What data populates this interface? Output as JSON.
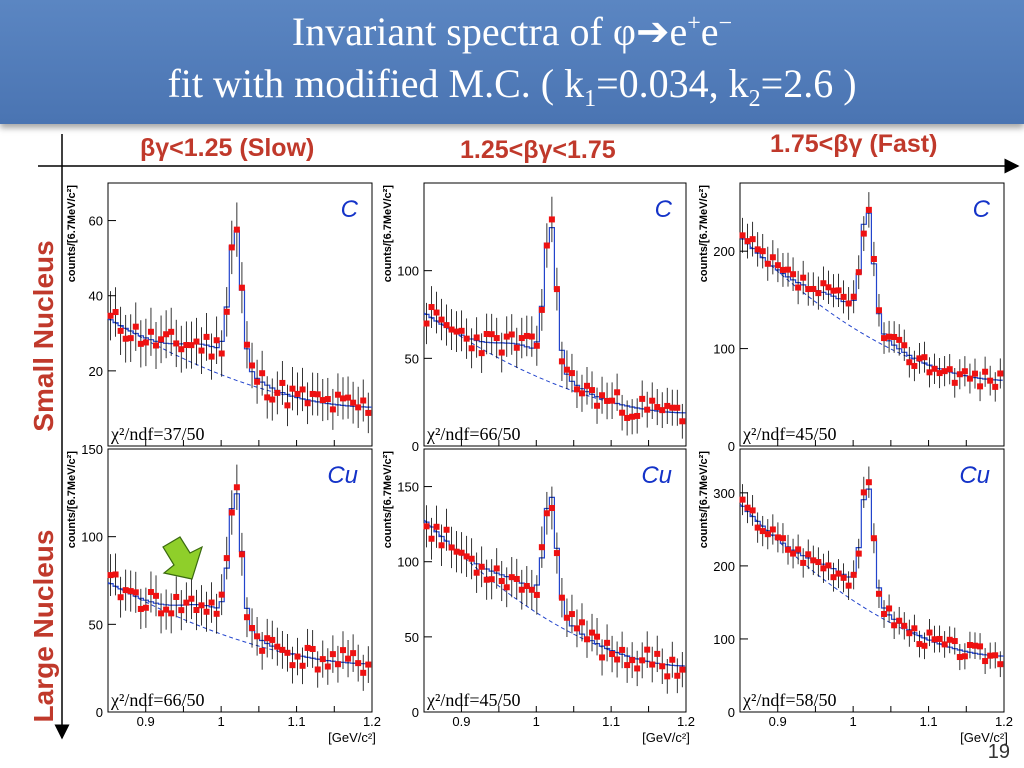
{
  "title": {
    "line1_text": "Invariant spectra of φ",
    "line1_arrow": "➔",
    "line1_e1": "e",
    "line1_sup1": "+",
    "line1_e2": "e",
    "line1_sup2": "−",
    "line2_a": "fit with modified M.C. ( k",
    "line2_sub1": "1",
    "line2_b": "=0.034, k",
    "line2_sub2": "2",
    "line2_c": "=2.6 )"
  },
  "columns": [
    "βγ<1.25 (Slow)",
    "1.25<βγ<1.75",
    "1.75<βγ (Fast)"
  ],
  "rows": [
    "Small Nucleus",
    "Large Nucleus"
  ],
  "page_number": "19",
  "colors": {
    "data": "#ee1111",
    "fit": "#2244cc",
    "label_red": "#c0392b",
    "title_bar": "#4f7bb8"
  },
  "chart_data": [
    {
      "type": "line",
      "nucleus": "C",
      "chi2": "χ²/ndf=37/50",
      "ylabel": "counts/[6.7MeV/c²]",
      "xlabel": "",
      "xlim": [
        0.85,
        1.2
      ],
      "ylim": [
        0,
        70
      ],
      "yticks": [
        20,
        40,
        60
      ],
      "bg": [
        34,
        23
      ],
      "peak": {
        "height": 36,
        "width": 0.008
      },
      "noise": 3.5,
      "seed": 11
    },
    {
      "type": "line",
      "nucleus": "C",
      "chi2": "χ²/ndf=66/50",
      "ylabel": "counts/[6.7MeV/c²]",
      "xlabel": "",
      "xlim": [
        0.85,
        1.2
      ],
      "ylim": [
        0,
        150
      ],
      "yticks": [
        0,
        50,
        100
      ],
      "bg": [
        76,
        42
      ],
      "peak": {
        "height": 80,
        "width": 0.008
      },
      "noise": 7,
      "seed": 23
    },
    {
      "type": "line",
      "nucleus": "C",
      "chi2": "χ²/ndf=45/50",
      "ylabel": "counts/[6.7MeV/c²]",
      "xlabel": "",
      "xlim": [
        0.85,
        1.2
      ],
      "ylim": [
        0,
        270
      ],
      "yticks": [
        0,
        100,
        200
      ],
      "bg": [
        215,
        150
      ],
      "peak": {
        "height": 115,
        "width": 0.008
      },
      "noise": 10,
      "seed": 37
    },
    {
      "type": "line",
      "nucleus": "Cu",
      "chi2": "χ²/ndf=66/50",
      "ylabel": "counts/[6.7MeV/c²]",
      "xlabel": "[GeV/c²]",
      "xlim": [
        0.85,
        1.2
      ],
      "ylim": [
        0,
        150
      ],
      "yticks": [
        0,
        50,
        100,
        150
      ],
      "xticks": [
        0.9,
        1,
        1.1,
        1.2
      ],
      "bg": [
        74,
        61
      ],
      "peak": {
        "height": 75,
        "width": 0.008
      },
      "noise": 7,
      "seed": 41,
      "arrow": true
    },
    {
      "type": "line",
      "nucleus": "Cu",
      "chi2": "χ²/ndf=45/50",
      "ylabel": "counts/[6.7MeV/c²]",
      "xlabel": "[GeV/c²]",
      "xlim": [
        0.85,
        1.2
      ],
      "ylim": [
        0,
        175
      ],
      "yticks": [
        0,
        50,
        100,
        150
      ],
      "xticks": [
        0.9,
        1,
        1.1,
        1.2
      ],
      "bg": [
        128,
        68
      ],
      "peak": {
        "height": 75,
        "width": 0.008
      },
      "noise": 8,
      "seed": 53
    },
    {
      "type": "line",
      "nucleus": "Cu",
      "chi2": "χ²/ndf=58/50",
      "ylabel": "counts/[6.7MeV/c²]",
      "xlabel": "[GeV/c²]",
      "xlim": [
        0.85,
        1.2
      ],
      "ylim": [
        0,
        360
      ],
      "yticks": [
        0,
        100,
        200,
        300
      ],
      "xticks": [
        0.9,
        1,
        1.1,
        1.2
      ],
      "bg": [
        285,
        170
      ],
      "peak": {
        "height": 150,
        "width": 0.008
      },
      "noise": 12,
      "seed": 67
    }
  ]
}
